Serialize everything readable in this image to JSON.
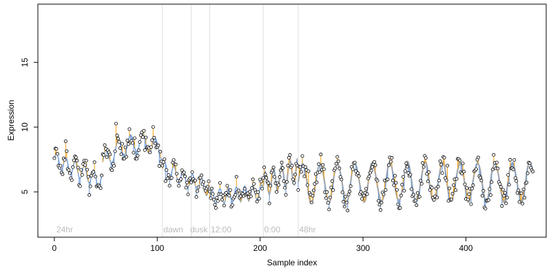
{
  "chart_data": {
    "type": "scatter",
    "title": "",
    "xlabel": "Sample index",
    "ylabel": "Expression",
    "xlim": [
      -16,
      478
    ],
    "ylim": [
      1.5,
      19.5
    ],
    "xticks": [
      0,
      100,
      200,
      300,
      400
    ],
    "yticks": [
      5,
      10,
      15
    ],
    "grid": false,
    "legend": "none",
    "region_markers": [
      {
        "x": 105,
        "label": ""
      },
      {
        "x": 133,
        "label": ""
      },
      {
        "x": 151,
        "label": ""
      },
      {
        "x": 203,
        "label": ""
      },
      {
        "x": 237,
        "label": ""
      }
    ],
    "region_labels": [
      {
        "x": 2,
        "label": "24hr"
      },
      {
        "x": 106,
        "label": "dawn"
      },
      {
        "x": 132,
        "label": "dusk"
      },
      {
        "x": 152,
        "label": "12:00"
      },
      {
        "x": 204,
        "label": "0:00"
      },
      {
        "x": 238,
        "label": "48hr"
      }
    ],
    "colors": {
      "fit": "#6f9ad4",
      "gray_fit": "#a6a6a6",
      "residual": "#f5a623",
      "marker_fill": "#ffffff",
      "marker_stroke": "#000000",
      "divider": "#dddddd"
    },
    "segments": [
      {
        "x0": 0,
        "x1": 47,
        "start": 7.5,
        "end": 5.8,
        "amp": 0.6,
        "period": 9,
        "style": "blue"
      },
      {
        "x0": 47,
        "x1": 105,
        "start": 7.3,
        "end": 8.2,
        "amp": 0.7,
        "period": 12,
        "bump": 1.0,
        "style": "blue"
      },
      {
        "x0": 105,
        "x1": 151,
        "start": 6.8,
        "end": 5.2,
        "amp": 0.6,
        "period": 9,
        "style": "blue"
      },
      {
        "x0": 151,
        "x1": 203,
        "start": 4.6,
        "end": 5.0,
        "amp": 0.6,
        "period": 8,
        "style": "blue"
      },
      {
        "x0": 203,
        "x1": 237,
        "start": 5.5,
        "end": 6.8,
        "amp": 1.0,
        "period": 8,
        "style": "mixed"
      },
      {
        "x0": 237,
        "x1": 465,
        "start": 5.7,
        "end": 5.8,
        "amp": 1.5,
        "period": 17,
        "style": "mixed"
      }
    ],
    "n_points": 465,
    "x_step": 1
  }
}
